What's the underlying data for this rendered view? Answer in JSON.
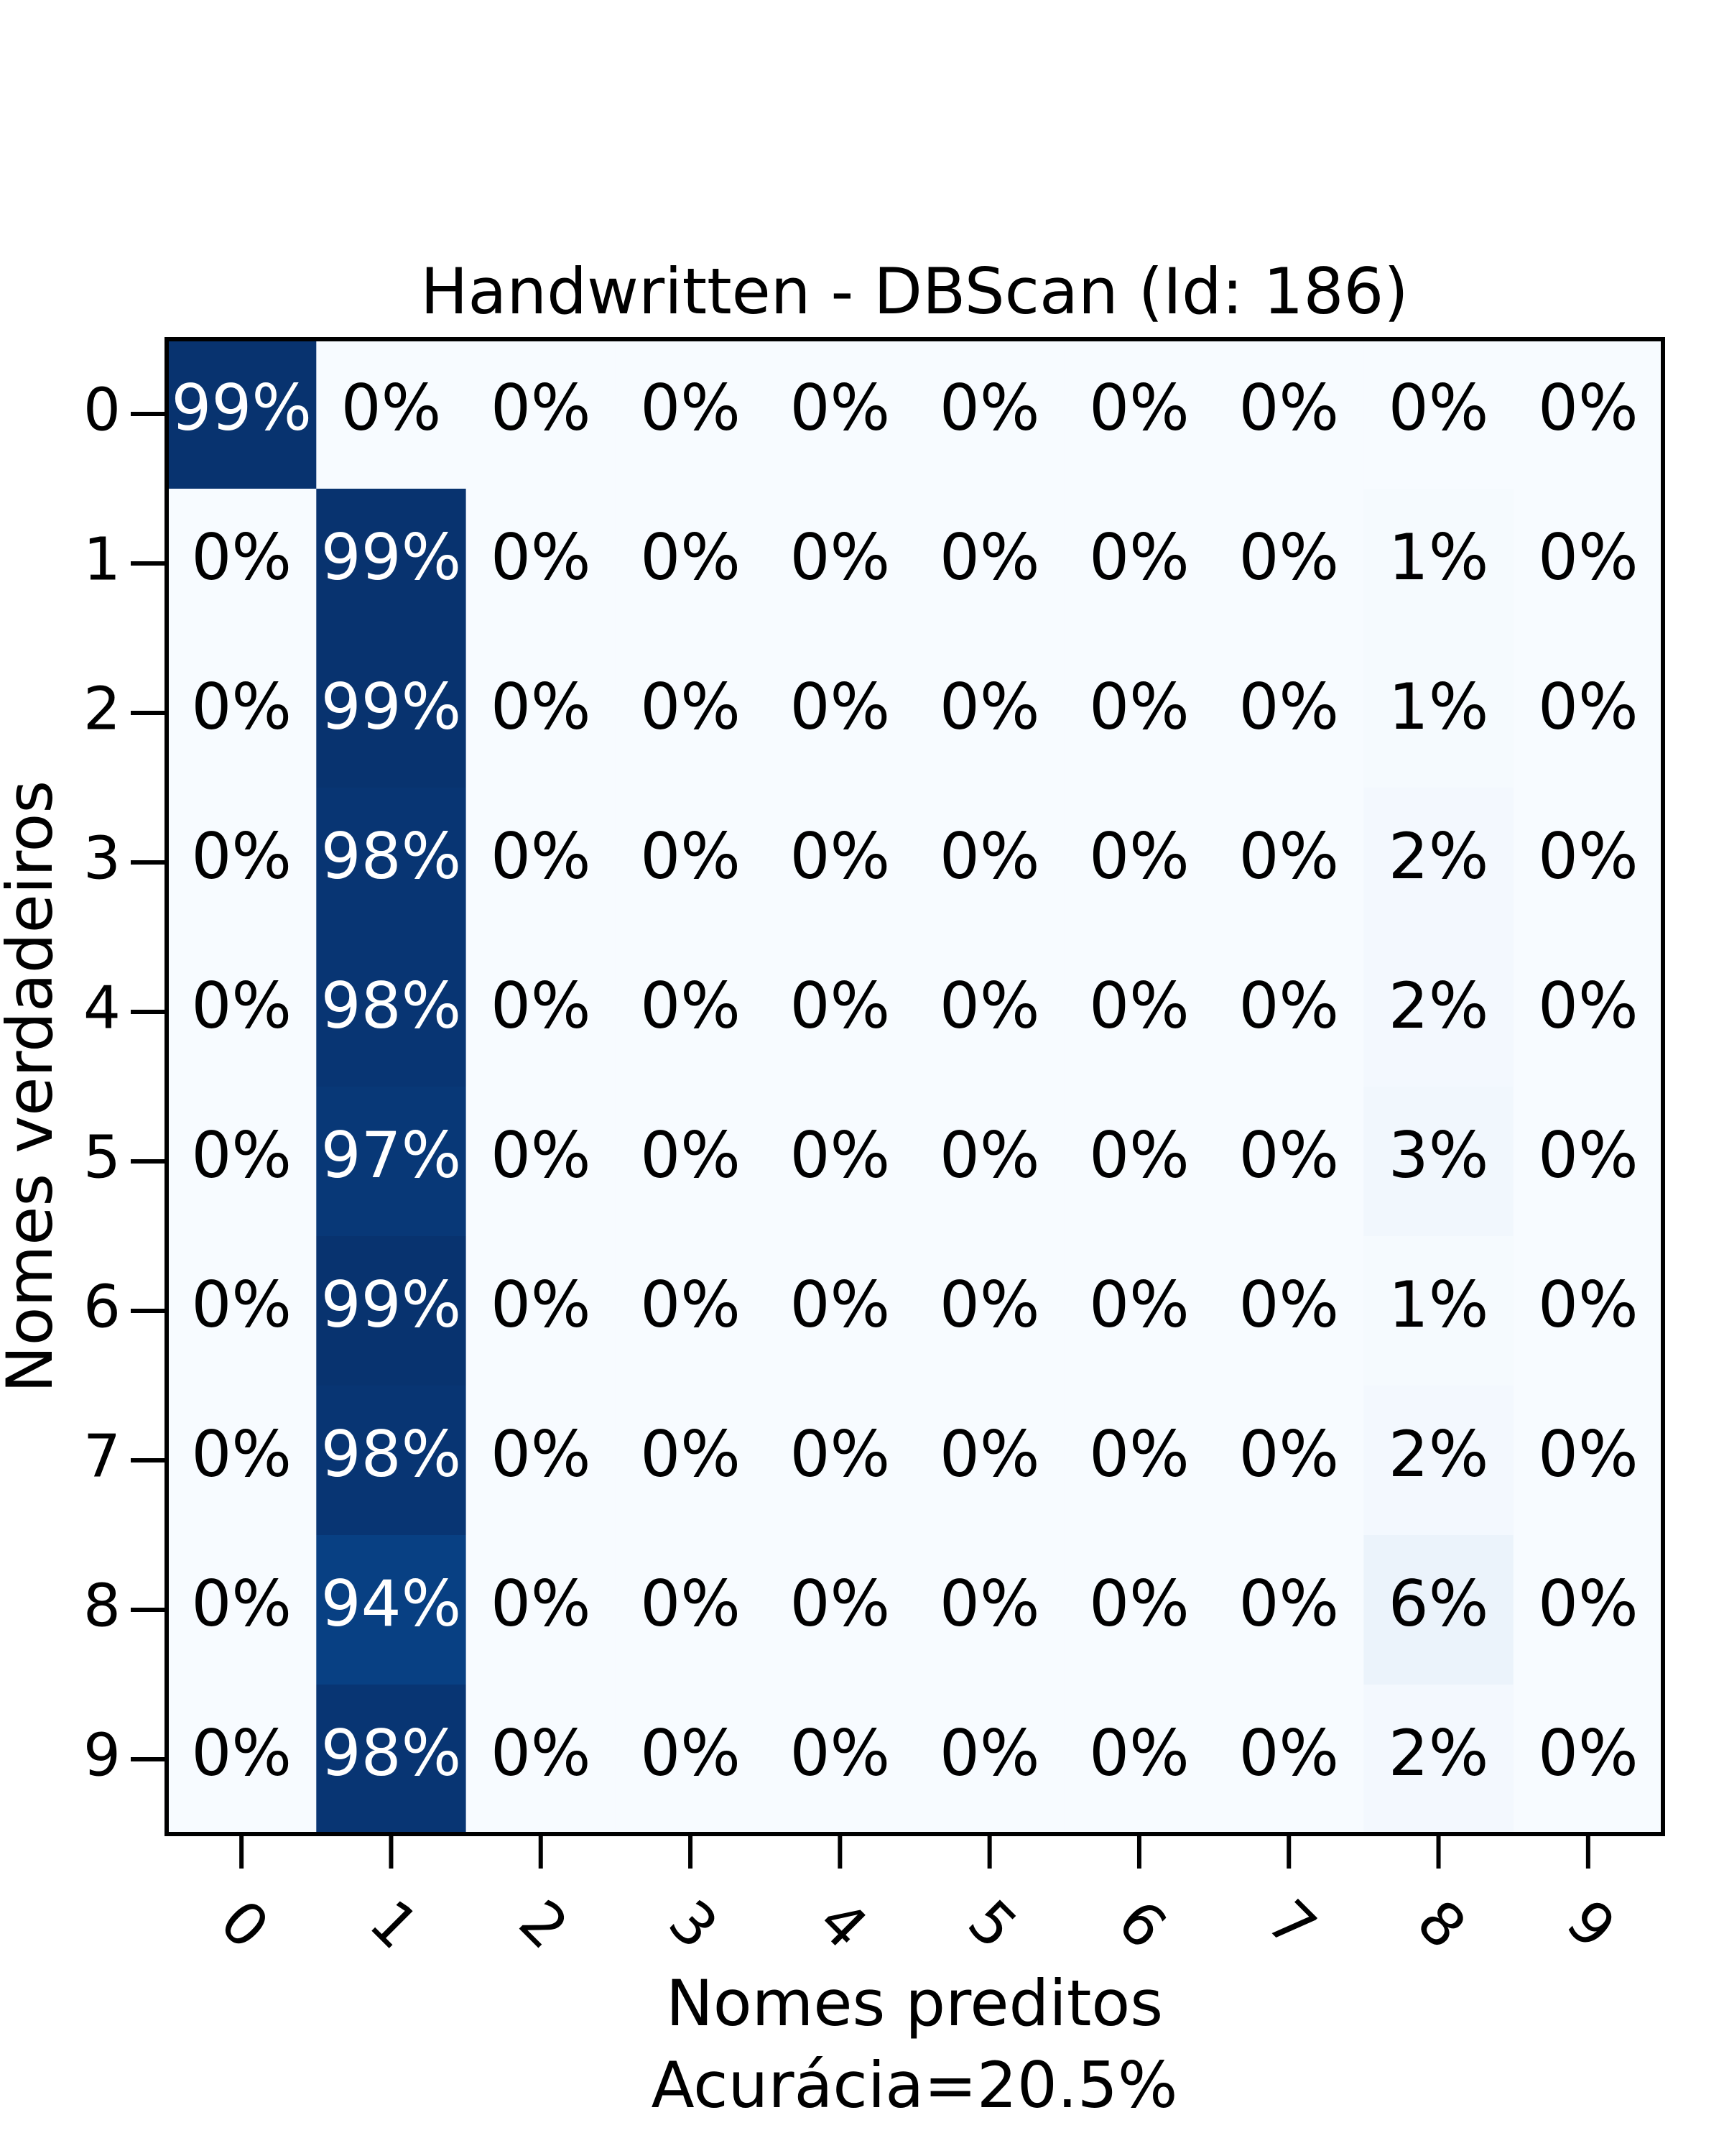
{
  "chart_data": {
    "type": "heatmap",
    "title": "Handwritten - DBScan (Id: 186)",
    "xlabel": "Nomes preditos",
    "xlabel_sub": "Acurácia=20.5%",
    "ylabel": "Nomes verdadeiros",
    "x_categories": [
      "0",
      "1",
      "2",
      "3",
      "4",
      "5",
      "6",
      "7",
      "8",
      "9"
    ],
    "y_categories": [
      "0",
      "1",
      "2",
      "3",
      "4",
      "5",
      "6",
      "7",
      "8",
      "9"
    ],
    "values": [
      [
        99,
        0,
        0,
        0,
        0,
        0,
        0,
        0,
        0,
        0
      ],
      [
        0,
        99,
        0,
        0,
        0,
        0,
        0,
        0,
        1,
        0
      ],
      [
        0,
        99,
        0,
        0,
        0,
        0,
        0,
        0,
        1,
        0
      ],
      [
        0,
        98,
        0,
        0,
        0,
        0,
        0,
        0,
        2,
        0
      ],
      [
        0,
        98,
        0,
        0,
        0,
        0,
        0,
        0,
        2,
        0
      ],
      [
        0,
        97,
        0,
        0,
        0,
        0,
        0,
        0,
        3,
        0
      ],
      [
        0,
        99,
        0,
        0,
        0,
        0,
        0,
        0,
        1,
        0
      ],
      [
        0,
        98,
        0,
        0,
        0,
        0,
        0,
        0,
        2,
        0
      ],
      [
        0,
        94,
        0,
        0,
        0,
        0,
        0,
        0,
        6,
        0
      ],
      [
        0,
        98,
        0,
        0,
        0,
        0,
        0,
        0,
        2,
        0
      ]
    ],
    "cell_labels": [
      [
        "99%",
        "0%",
        "0%",
        "0%",
        "0%",
        "0%",
        "0%",
        "0%",
        "0%",
        "0%"
      ],
      [
        "0%",
        "99%",
        "0%",
        "0%",
        "0%",
        "0%",
        "0%",
        "0%",
        "1%",
        "0%"
      ],
      [
        "0%",
        "99%",
        "0%",
        "0%",
        "0%",
        "0%",
        "0%",
        "0%",
        "1%",
        "0%"
      ],
      [
        "0%",
        "98%",
        "0%",
        "0%",
        "0%",
        "0%",
        "0%",
        "0%",
        "2%",
        "0%"
      ],
      [
        "0%",
        "98%",
        "0%",
        "0%",
        "0%",
        "0%",
        "0%",
        "0%",
        "2%",
        "0%"
      ],
      [
        "0%",
        "97%",
        "0%",
        "0%",
        "0%",
        "0%",
        "0%",
        "0%",
        "3%",
        "0%"
      ],
      [
        "0%",
        "99%",
        "0%",
        "0%",
        "0%",
        "0%",
        "0%",
        "0%",
        "1%",
        "0%"
      ],
      [
        "0%",
        "98%",
        "0%",
        "0%",
        "0%",
        "0%",
        "0%",
        "0%",
        "2%",
        "0%"
      ],
      [
        "0%",
        "94%",
        "0%",
        "0%",
        "0%",
        "0%",
        "0%",
        "0%",
        "6%",
        "0%"
      ],
      [
        "0%",
        "98%",
        "0%",
        "0%",
        "0%",
        "0%",
        "0%",
        "0%",
        "2%",
        "0%"
      ]
    ],
    "value_range": [
      0,
      100
    ],
    "colormap": "Blues",
    "colors": {
      "low": "#f7fbff",
      "high": "#08306b",
      "text_dark": "#000000",
      "text_light": "#ffffff"
    },
    "grid": false,
    "legend": "none"
  }
}
